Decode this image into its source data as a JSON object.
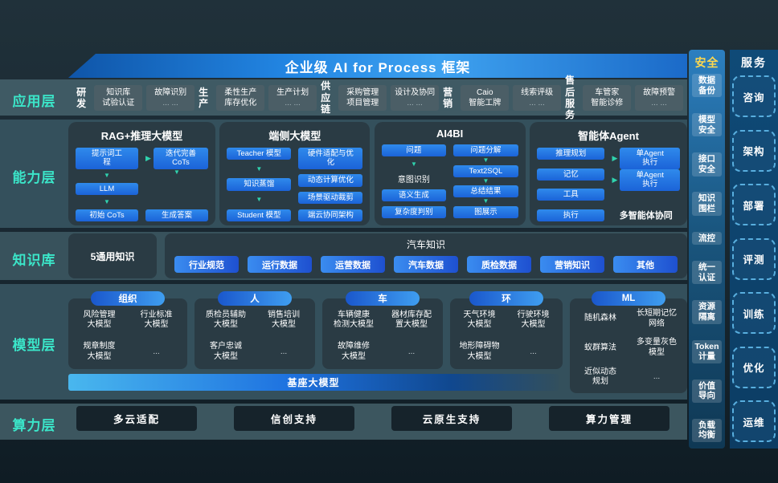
{
  "banner": {
    "title": "企业级 AI for Process 框架"
  },
  "app_layer": {
    "label": "应用层",
    "groups": [
      {
        "name": "研发",
        "boxes": [
          [
            "知识库",
            "试验认证"
          ],
          [
            "故障识别",
            "... ..."
          ]
        ]
      },
      {
        "name": "生产",
        "boxes": [
          [
            "柔性生产",
            "库存优化"
          ],
          [
            "生产计划",
            "... ..."
          ]
        ]
      },
      {
        "name": "供应\n链",
        "boxes": [
          [
            "采购管理",
            "项目管理"
          ],
          [
            "设计及协同",
            "... ..."
          ]
        ]
      },
      {
        "name": "营销",
        "boxes": [
          [
            "Caio",
            "智能工牌"
          ],
          [
            "线索评级",
            "... ..."
          ]
        ]
      },
      {
        "name": "售后\n服务",
        "boxes": [
          [
            "车管家",
            "智能诊修"
          ],
          [
            "故障预警",
            "... ..."
          ]
        ]
      }
    ]
  },
  "capability_layer": {
    "label": "能力层",
    "rag": {
      "title": "RAG+推理大模型",
      "left": [
        "提示词工\n程",
        "LLM",
        "初始 CoTs"
      ],
      "right": [
        "迭代完善\nCoTs",
        "生成答案"
      ]
    },
    "edge": {
      "title": "端侧大模型",
      "left": [
        "Teacher 模型",
        "知识蒸馏",
        "Student 模型"
      ],
      "right": [
        "硬件适配与优\n化",
        "动态计算优化",
        "场景驱动裁剪",
        "端云协同架构"
      ]
    },
    "ai4bi": {
      "title": "AI4BI",
      "left": [
        "问题",
        "意图识别",
        "语义生成",
        "复杂度判别"
      ],
      "right": [
        "问题分解",
        "Text2SQL",
        "总结结果",
        "图展示"
      ]
    },
    "agent": {
      "title": "智能体Agent",
      "left": [
        "推理规划",
        "记忆",
        "工具",
        "执行"
      ],
      "right": [
        "单Agent\n执行",
        "单Agent\n执行"
      ],
      "note": "多智能体协同"
    }
  },
  "knowledge_layer": {
    "label": "知识库",
    "general": "5通用知识",
    "domain_title": "汽车知识",
    "pills": [
      "行业规范",
      "运行数据",
      "运营数据",
      "汽车数据",
      "质检数据",
      "营销知识",
      "其他"
    ]
  },
  "model_layer": {
    "label": "模型层",
    "groups": [
      {
        "pill": "组织",
        "models": [
          "风险管理\n大模型",
          "行业标准\n大模型",
          "规章制度\n大模型",
          "..."
        ]
      },
      {
        "pill": "人",
        "models": [
          "质检员辅助\n大模型",
          "销售培训\n大模型",
          "客户忠诚\n大模型",
          "..."
        ]
      },
      {
        "pill": "车",
        "models": [
          "车辆健康\n检测大模型",
          "器材库存配\n置大模型",
          "故障维修\n大模型",
          "..."
        ]
      },
      {
        "pill": "环",
        "models": [
          "天气环境\n大模型",
          "行驶环境\n大模型",
          "地形障碍物\n大模型",
          "..."
        ]
      },
      {
        "pill": "ML",
        "models": [
          "随机森林",
          "长短期记忆\n网络",
          "蚁群算法",
          "多变量灰色\n模型",
          "近似动态\n规划",
          "..."
        ]
      }
    ],
    "base_model": "基座大模型"
  },
  "compute_layer": {
    "label": "算力层",
    "items": [
      "多云适配",
      "信创支持",
      "云原生支持",
      "算力管理"
    ]
  },
  "security_column": {
    "title": "安全",
    "items": [
      "数据\n备份",
      "模型\n安全",
      "接口\n安全",
      "知识\n围栏",
      "流控",
      "统一\n认证",
      "资源\n隔离",
      "Token\n计量",
      "价值\n导向",
      "负载\n均衡"
    ]
  },
  "service_column": {
    "title": "服务",
    "items": [
      "咨询",
      "架构",
      "部署",
      "评测",
      "训练",
      "优化",
      "运维"
    ]
  },
  "colors": {
    "accent_cyan": "#3be6c9",
    "banner_blue": "#2285e2",
    "box_blue": "#1e74e0",
    "security_gold": "#ffd84e"
  }
}
